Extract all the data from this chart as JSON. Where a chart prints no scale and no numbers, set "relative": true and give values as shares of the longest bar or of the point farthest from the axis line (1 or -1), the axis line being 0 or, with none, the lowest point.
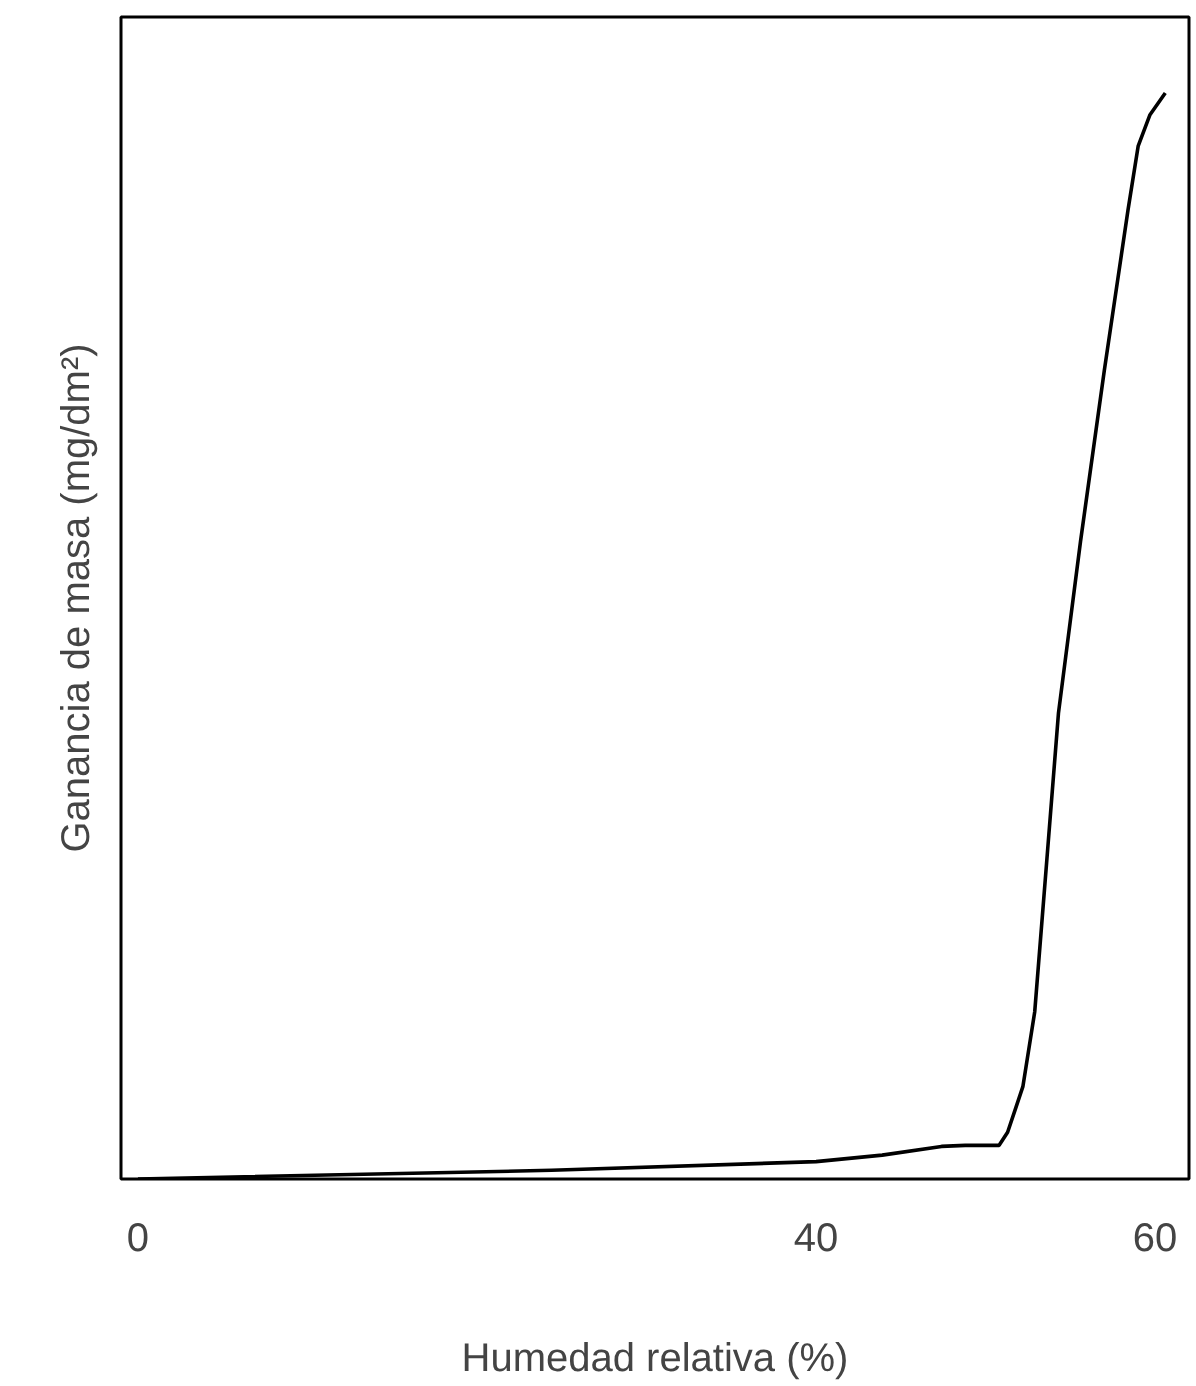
{
  "chart_data": {
    "type": "line",
    "relative": true,
    "xlabel": "Humedad relativa (%)",
    "ylabel": "Ganancia de masa (mg/dm²)",
    "x": [
      0,
      24.4,
      40,
      43.9,
      47.4,
      48.8,
      50.8,
      51.3,
      52.2,
      52.9,
      53.6,
      54.3,
      55.6,
      57.0,
      58.4,
      59.0,
      59.7,
      60.6
    ],
    "series": [
      {
        "color": "#000000",
        "values": [
          0,
          0.008,
          0.016,
          0.022,
          0.03,
          0.031,
          0.031,
          0.043,
          0.085,
          0.154,
          0.291,
          0.429,
          0.587,
          0.744,
          0.892,
          0.951,
          0.98,
          1.0
        ]
      }
    ],
    "xlim": [
      -1,
      62
    ],
    "xticks": [
      0,
      40,
      60
    ],
    "grid": false,
    "marker": "none",
    "line_style": "solid"
  }
}
